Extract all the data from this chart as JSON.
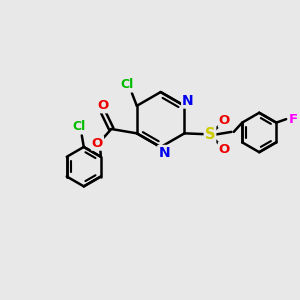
{
  "background_color": "#e8e8e8",
  "bond_color": "#000000",
  "bond_width": 1.8,
  "atom_colors": {
    "C": "#000000",
    "Cl": "#00bb00",
    "N": "#0000ee",
    "O": "#ee0000",
    "S": "#cccc00",
    "F": "#ff00ff"
  },
  "figsize": [
    3.0,
    3.0
  ],
  "dpi": 100
}
